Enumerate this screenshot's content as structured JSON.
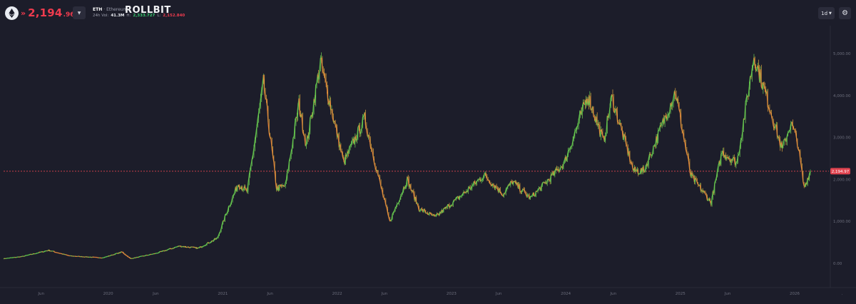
{
  "header": {
    "coin_icon": "ethereum-icon",
    "direction_icon": "double-chevron-down-icon",
    "price_main": "2,194",
    "price_decimals": ".968",
    "symbol": "ETH",
    "separator": "·",
    "name": "Ethereum",
    "brand": "ROLLBIT",
    "vol_label": "24h Vol:",
    "vol_value": "41.3M",
    "high_label": "H:",
    "high_value": "2,333.727",
    "low_label": "L:",
    "low_value": "2,152.840",
    "timeframe": "1d",
    "settings_icon": "gear-icon",
    "colors": {
      "down": "#ee3b4e",
      "up": "#35c96e",
      "background": "#1c1d2a"
    }
  },
  "chart_data": {
    "type": "line",
    "title": "",
    "xlabel": "",
    "ylabel": "",
    "ylim": [
      -300,
      5500
    ],
    "y_ticks": [
      0,
      1000,
      2000,
      3000,
      4000,
      5000
    ],
    "y_tick_labels": [
      "0.00",
      "1,000.00",
      "2,000.00",
      "3,000.00",
      "4,000.00",
      "5,000.00"
    ],
    "x_tick_labels": [
      "Jun",
      "2020",
      "Jun",
      "2021",
      "Jun",
      "2022",
      "Jun",
      "2023",
      "Jun",
      "2024",
      "Jun",
      "2025",
      "Jun",
      "2026",
      "."
    ],
    "x_tick_dates": [
      "2019-06-01",
      "2020-01-01",
      "2020-06-01",
      "2021-01-01",
      "2021-06-01",
      "2022-01-01",
      "2022-06-01",
      "2023-01-01",
      "2023-06-01",
      "2024-01-01",
      "2024-06-01",
      "2025-01-01",
      "2025-06-01",
      "2026-01-01",
      "2026-06-01"
    ],
    "x_range": [
      "2019-02-01",
      "2026-02-20"
    ],
    "current_price": 2194.97,
    "current_price_label": "2,194.97",
    "series": [
      {
        "values": [
          [
            "2019-02-01",
            110
          ],
          [
            "2019-04-01",
            160
          ],
          [
            "2019-06-25",
            310
          ],
          [
            "2019-09-01",
            175
          ],
          [
            "2019-12-15",
            130
          ],
          [
            "2020-02-14",
            270
          ],
          [
            "2020-03-13",
            110
          ],
          [
            "2020-06-01",
            235
          ],
          [
            "2020-08-15",
            410
          ],
          [
            "2020-10-15",
            360
          ],
          [
            "2020-12-15",
            600
          ],
          [
            "2021-01-20",
            1350
          ],
          [
            "2021-02-20",
            1900
          ],
          [
            "2021-03-20",
            1700
          ],
          [
            "2021-05-11",
            4300
          ],
          [
            "2021-06-22",
            1780
          ],
          [
            "2021-07-20",
            1850
          ],
          [
            "2021-09-01",
            3800
          ],
          [
            "2021-09-25",
            2800
          ],
          [
            "2021-11-09",
            4800
          ],
          [
            "2022-01-22",
            2400
          ],
          [
            "2022-03-30",
            3450
          ],
          [
            "2022-05-15",
            2000
          ],
          [
            "2022-06-18",
            990
          ],
          [
            "2022-08-13",
            2000
          ],
          [
            "2022-09-20",
            1300
          ],
          [
            "2022-11-10",
            1100
          ],
          [
            "2023-02-15",
            1700
          ],
          [
            "2023-04-16",
            2100
          ],
          [
            "2023-06-15",
            1650
          ],
          [
            "2023-07-15",
            1950
          ],
          [
            "2023-09-10",
            1550
          ],
          [
            "2023-11-15",
            2050
          ],
          [
            "2023-12-28",
            2400
          ],
          [
            "2024-03-12",
            4000
          ],
          [
            "2024-05-01",
            2900
          ],
          [
            "2024-05-27",
            3950
          ],
          [
            "2024-08-05",
            2200
          ],
          [
            "2024-09-06",
            2200
          ],
          [
            "2024-10-01",
            2650
          ],
          [
            "2024-12-16",
            4100
          ],
          [
            "2025-02-03",
            2100
          ],
          [
            "2025-04-09",
            1450
          ],
          [
            "2025-05-14",
            2650
          ],
          [
            "2025-07-01",
            2400
          ],
          [
            "2025-08-24",
            4950
          ],
          [
            "2025-10-10",
            3800
          ],
          [
            "2025-11-22",
            2700
          ],
          [
            "2025-12-20",
            3350
          ],
          [
            "2026-01-10",
            2900
          ],
          [
            "2026-01-31",
            1800
          ],
          [
            "2026-02-20",
            2194.97
          ]
        ]
      }
    ]
  }
}
